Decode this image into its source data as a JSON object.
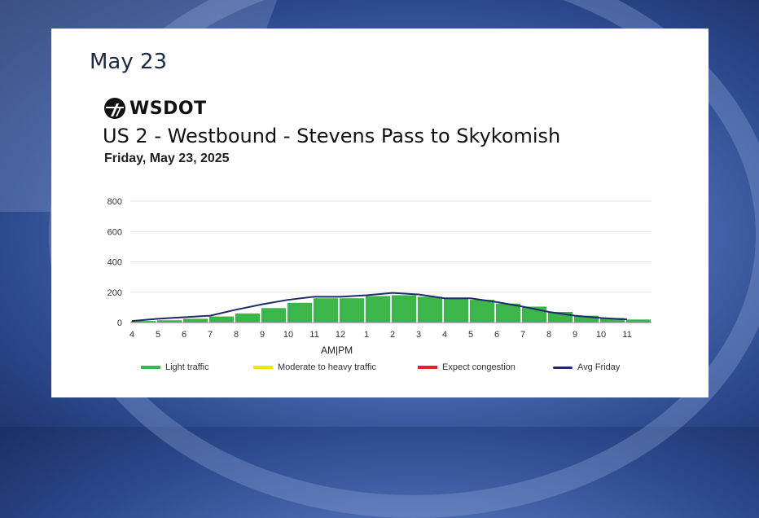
{
  "heading": "May 23",
  "logo_text": "WSDOT",
  "route_title": "US 2 - Westbound - Stevens Pass to Skykomish",
  "chart_date": "Friday, May 23, 2025",
  "ampm_label": "AM|PM",
  "colors": {
    "light": "#3cb54a",
    "moderate": "#f2e600",
    "congestion": "#e8202a",
    "avg": "#1f2a6b"
  },
  "legend": [
    {
      "label": "Light traffic",
      "kind": "light"
    },
    {
      "label": "Moderate to heavy traffic",
      "kind": "moderate"
    },
    {
      "label": "Expect congestion",
      "kind": "congestion"
    },
    {
      "label": "Avg Friday",
      "kind": "avg"
    }
  ],
  "chart_data": {
    "type": "bar",
    "title": "US 2 - Westbound - Stevens Pass to Skykomish",
    "subtitle": "Friday, May 23, 2025",
    "xlabel": "AM|PM",
    "ylabel": "",
    "ylim": [
      0,
      800
    ],
    "yticks": [
      0,
      200,
      400,
      600,
      800
    ],
    "grid": true,
    "legend_position": "bottom",
    "categories": [
      "4",
      "5",
      "6",
      "7",
      "8",
      "9",
      "10",
      "11",
      "12",
      "1",
      "2",
      "3",
      "4",
      "5",
      "6",
      "7",
      "8",
      "9",
      "10",
      "11"
    ],
    "series": [
      {
        "name": "Light traffic",
        "type": "bar",
        "values": [
          10,
          15,
          25,
          40,
          60,
          95,
          130,
          160,
          160,
          175,
          180,
          170,
          160,
          150,
          125,
          105,
          70,
          45,
          30,
          20
        ]
      },
      {
        "name": "Avg Friday",
        "type": "line",
        "values": [
          10,
          25,
          35,
          45,
          85,
          120,
          150,
          170,
          170,
          180,
          195,
          185,
          160,
          160,
          135,
          105,
          70,
          45,
          30,
          20
        ]
      }
    ]
  }
}
